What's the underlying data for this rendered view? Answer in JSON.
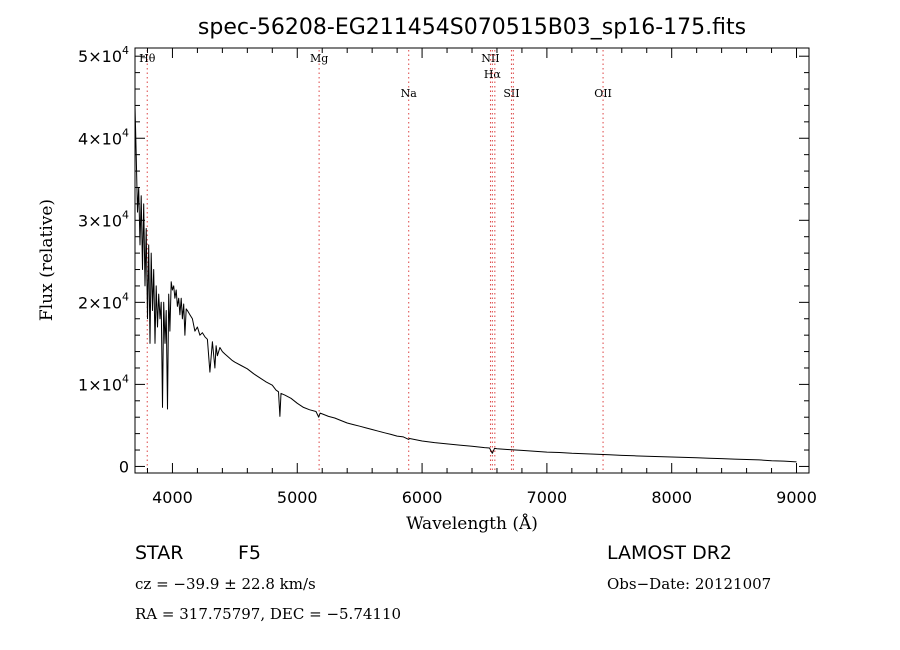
{
  "chart_data": {
    "type": "line",
    "title": "spec-56208-EG211454S070515B03_sp16-175.fits",
    "xlabel": "Wavelength (Å)",
    "ylabel": "Flux (relative)",
    "xlim": [
      3700,
      9100
    ],
    "ylim": [
      -800,
      51000
    ],
    "x_ticks": [
      4000,
      5000,
      6000,
      7000,
      8000,
      9000
    ],
    "y_ticks": [
      {
        "value": 0,
        "mantissa": "0",
        "exponent": ""
      },
      {
        "value": 10000,
        "mantissa": "1×10",
        "exponent": "4"
      },
      {
        "value": 20000,
        "mantissa": "2×10",
        "exponent": "4"
      },
      {
        "value": 30000,
        "mantissa": "3×10",
        "exponent": "4"
      },
      {
        "value": 40000,
        "mantissa": "4×10",
        "exponent": "4"
      },
      {
        "value": 50000,
        "mantissa": "5×10",
        "exponent": "4"
      }
    ],
    "series": [
      {
        "x": [
          3700,
          3710,
          3720,
          3730,
          3740,
          3750,
          3760,
          3770,
          3780,
          3790,
          3800,
          3810,
          3820,
          3830,
          3840,
          3850,
          3860,
          3870,
          3880,
          3890,
          3900,
          3910,
          3920,
          3930,
          3940,
          3950,
          3960,
          3970,
          3980,
          3990,
          4000,
          4010,
          4020,
          4030,
          4040,
          4050,
          4060,
          4070,
          4080,
          4090,
          4100,
          4110,
          4120,
          4140,
          4160,
          4180,
          4200,
          4220,
          4240,
          4260,
          4280,
          4300,
          4320,
          4340,
          4350,
          4360,
          4380,
          4400,
          4420,
          4450,
          4480,
          4500,
          4550,
          4600,
          4650,
          4700,
          4750,
          4800,
          4830,
          4850,
          4861,
          4870,
          4900,
          4950,
          5000,
          5050,
          5100,
          5150,
          5172,
          5183,
          5200,
          5250,
          5300,
          5350,
          5400,
          5450,
          5500,
          5550,
          5600,
          5650,
          5700,
          5750,
          5800,
          5850,
          5893,
          5900,
          6000,
          6100,
          6200,
          6300,
          6400,
          6500,
          6540,
          6563,
          6580,
          6600,
          6700,
          6800,
          6900,
          7000,
          7100,
          7200,
          7300,
          7400,
          7500,
          7600,
          7700,
          7800,
          7900,
          8000,
          8100,
          8200,
          8300,
          8400,
          8500,
          8600,
          8700,
          8800,
          8900,
          9000
        ],
        "y": [
          44000,
          38000,
          31000,
          34000,
          27000,
          33000,
          24000,
          32000,
          22000,
          29000,
          18000,
          27000,
          15000,
          26000,
          19000,
          24000,
          15000,
          22000,
          17000,
          21000,
          18000,
          20000,
          7200,
          20000,
          15000,
          19000,
          7000,
          21000,
          16500,
          22500,
          21500,
          22000,
          20500,
          21500,
          19500,
          20500,
          18500,
          20500,
          18000,
          19800,
          16000,
          19200,
          19000,
          18500,
          18000,
          16500,
          17000,
          16000,
          16300,
          15800,
          15500,
          11500,
          15200,
          12000,
          14700,
          13500,
          14500,
          14000,
          13700,
          13300,
          12900,
          12700,
          12300,
          11900,
          11300,
          10800,
          10300,
          9900,
          9300,
          9100,
          6100,
          8900,
          8700,
          8300,
          7700,
          7200,
          6900,
          6700,
          6000,
          6500,
          6400,
          6100,
          5900,
          5600,
          5300,
          5100,
          4900,
          4700,
          4500,
          4300,
          4100,
          3900,
          3700,
          3600,
          3300,
          3400,
          3100,
          2900,
          2750,
          2600,
          2450,
          2300,
          2250,
          1600,
          2200,
          2150,
          2050,
          1950,
          1850,
          1750,
          1700,
          1600,
          1550,
          1480,
          1420,
          1350,
          1300,
          1250,
          1200,
          1150,
          1100,
          1050,
          1000,
          950,
          900,
          850,
          800,
          700,
          650,
          550
        ]
      }
    ],
    "emission_lines": [
      {
        "wavelength": 3798,
        "label": "Hθ",
        "row": 0
      },
      {
        "wavelength": 5175,
        "label": "Mg",
        "row": 0
      },
      {
        "wavelength": 5893,
        "label": "Na",
        "row": 1
      },
      {
        "wavelength": 6548,
        "label": "NII",
        "row": 0
      },
      {
        "wavelength": 6563,
        "label": "Hα",
        "row": 0
      },
      {
        "wavelength": 6583,
        "label": "",
        "row": 0
      },
      {
        "wavelength": 6716,
        "label": "SII",
        "row": 1
      },
      {
        "wavelength": 6731,
        "label": "",
        "row": 1
      },
      {
        "wavelength": 7450,
        "label": "OII",
        "row": 1
      }
    ],
    "grid": false,
    "line_color": "#000000",
    "marker_color": "#dd4444"
  },
  "info": {
    "object_type": "STAR",
    "subclass": "F5",
    "survey": "LAMOST DR2",
    "cz": "cz = −39.9 ± 22.8 km/s",
    "obs_date": "Obs−Date: 20121007",
    "coords": "RA = 317.75797, DEC =  −5.74110"
  }
}
